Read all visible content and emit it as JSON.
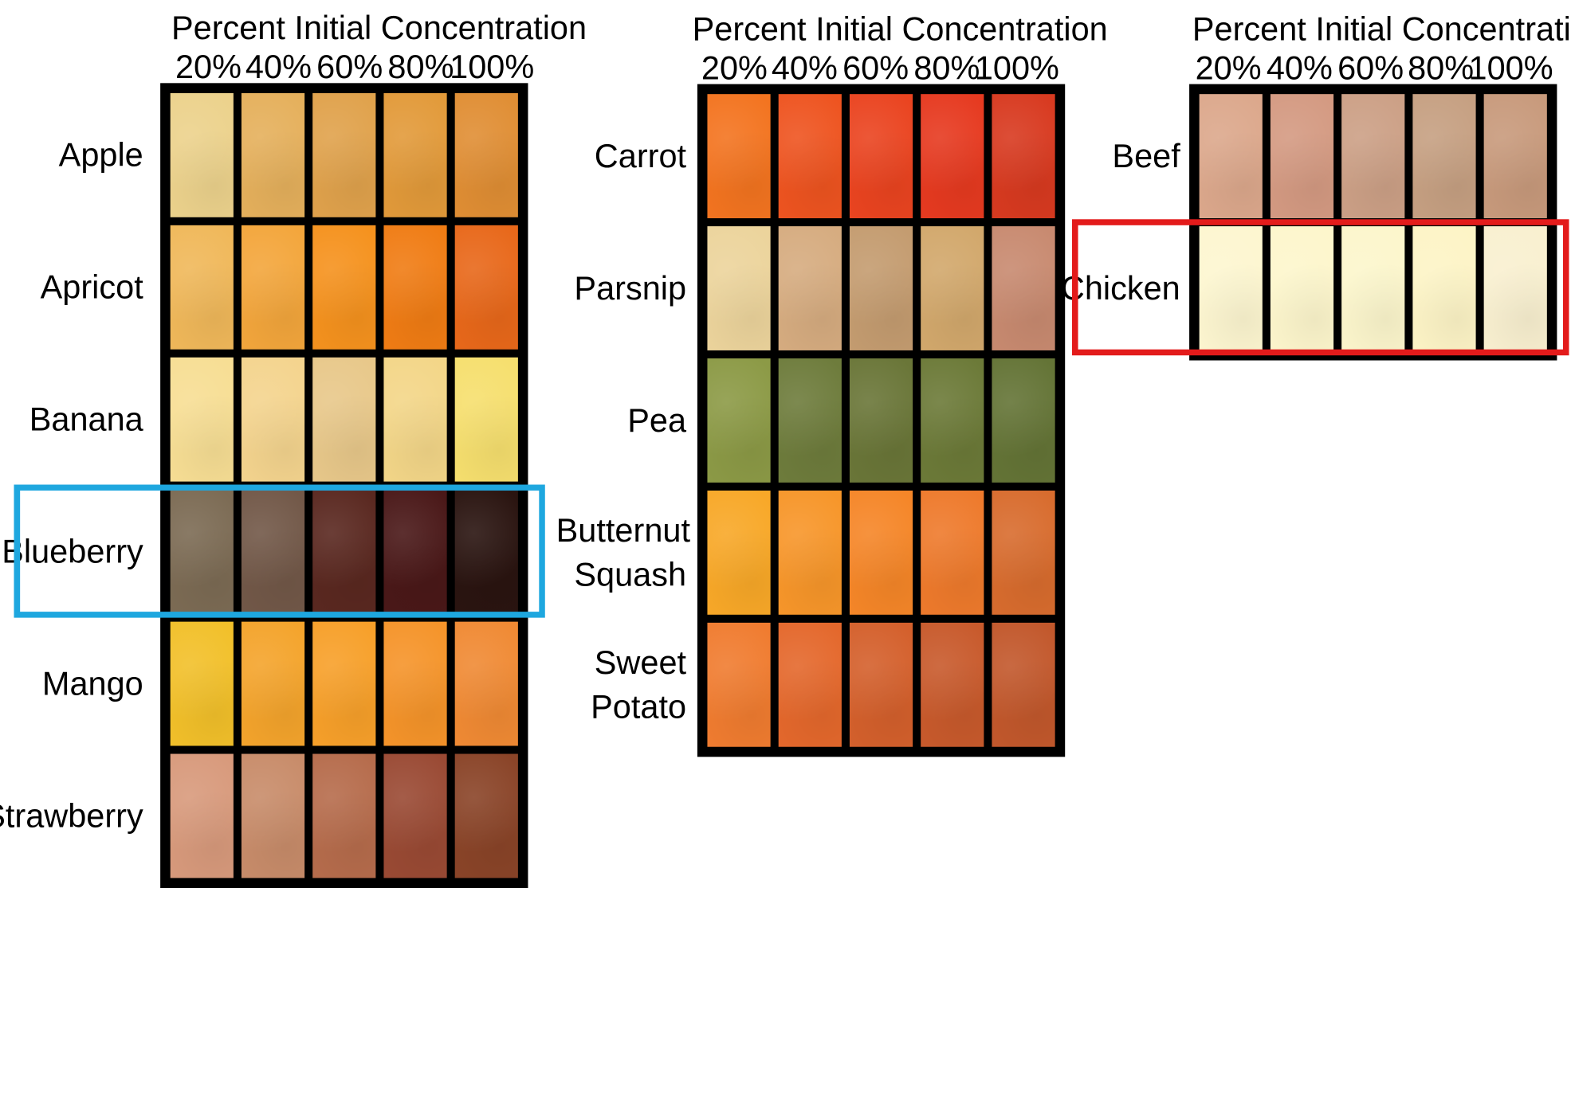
{
  "column_header": "Percent Initial Concentration",
  "columns": [
    "20%",
    "40%",
    "60%",
    "80%",
    "100%"
  ],
  "panels": [
    {
      "rows": [
        {
          "label": "Apple",
          "colors": [
            "#ecd28c",
            "#e5b05c",
            "#e0a24c",
            "#e29a3a",
            "#e08e34"
          ]
        },
        {
          "label": "Apricot",
          "colors": [
            "#f0b85a",
            "#f3a63c",
            "#f5921e",
            "#f07c14",
            "#e8681a"
          ]
        },
        {
          "label": "Banana",
          "colors": [
            "#f7de94",
            "#f4d48e",
            "#e8c88a",
            "#f3d688",
            "#f6df6e"
          ]
        },
        {
          "label": "Blueberry",
          "colors": [
            "#7c6b54",
            "#725848",
            "#5a2820",
            "#4a1818",
            "#2a1410"
          ]
        },
        {
          "label": "Mango",
          "colors": [
            "#f2c02a",
            "#f4a42c",
            "#f7a02a",
            "#f5942a",
            "#f08a34"
          ]
        },
        {
          "label": "Strawberry",
          "colors": [
            "#d89a7c",
            "#c88c6a",
            "#b66c4c",
            "#9a4a34",
            "#8a4428"
          ]
        }
      ],
      "highlight_color": "#1ea7df"
    },
    {
      "rows": [
        {
          "label": "Carrot",
          "colors": [
            "#f37420",
            "#ee5420",
            "#ea4420",
            "#e63a20",
            "#d83a20"
          ]
        },
        {
          "label": "Parsnip",
          "colors": [
            "#ecd49c",
            "#d6ac80",
            "#c49c70",
            "#d2a86c",
            "#c88a70"
          ]
        },
        {
          "label": "Pea",
          "colors": [
            "#8c9a46",
            "#6e7c3c",
            "#6a7638",
            "#6c7a38",
            "#647436"
          ]
        },
        {
          "label": "Butternut Squash",
          "colors": [
            "#f8a828",
            "#f7962a",
            "#f58628",
            "#ee7a2c",
            "#d86c2e"
          ]
        },
        {
          "label": "Sweet Potato",
          "colors": [
            "#f07c30",
            "#e4682c",
            "#d4602c",
            "#c85a2c",
            "#c2582c"
          ]
        }
      ]
    },
    {
      "rows": [
        {
          "label": "Beef",
          "colors": [
            "#dca88c",
            "#d49a82",
            "#cca086",
            "#c6a082",
            "#c89a7c"
          ]
        },
        {
          "label": "Chicken",
          "colors": [
            "#fdf6d0",
            "#fdf6cc",
            "#fcf6cc",
            "#fdf4c6",
            "#f9f0d0"
          ]
        }
      ],
      "highlight_color": "#e31b1b"
    }
  ]
}
